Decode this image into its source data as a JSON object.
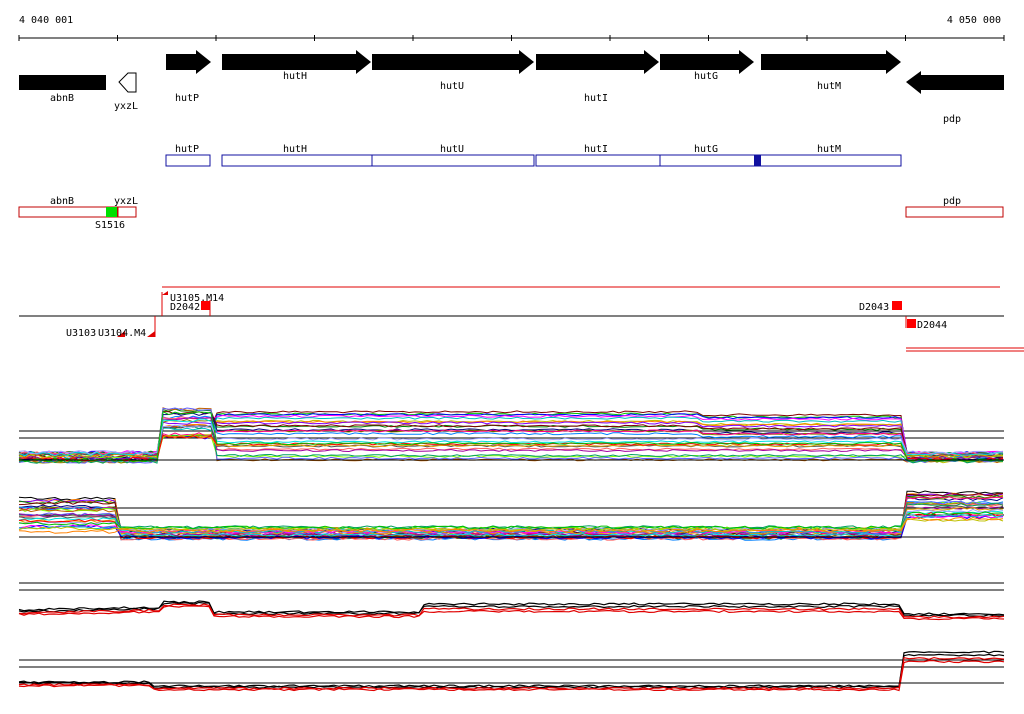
{
  "ruler": {
    "start_label": "4 040 001",
    "end_label": "4 050 000"
  },
  "genes": [
    {
      "name": "abnB",
      "strand": "-",
      "style": "solid"
    },
    {
      "name": "yxzL",
      "strand": "-",
      "style": "outline"
    },
    {
      "name": "hutP",
      "strand": "+",
      "style": "solid"
    },
    {
      "name": "hutH",
      "strand": "+",
      "style": "solid"
    },
    {
      "name": "hutU",
      "strand": "+",
      "style": "solid"
    },
    {
      "name": "hutI",
      "strand": "+",
      "style": "solid"
    },
    {
      "name": "hutG",
      "strand": "+",
      "style": "solid"
    },
    {
      "name": "hutM",
      "strand": "+",
      "style": "solid"
    },
    {
      "name": "pdp",
      "strand": "-",
      "style": "solid"
    }
  ],
  "forward_boxes": [
    "hutP",
    "hutH",
    "hutU",
    "hutI",
    "hutG",
    "hutM"
  ],
  "reverse_boxes": [
    "abnB",
    "yxzL",
    "pdp"
  ],
  "reverse_marker": "S1516",
  "feature_labels": {
    "u3105": "U3105.M14",
    "d2042": "D2042",
    "u3103": "U3103",
    "u3104": "U3104.M4",
    "d2043": "D2043",
    "d2044": "D2044"
  },
  "colors": {
    "forward_box": "#1010a0",
    "reverse_box": "#c00000",
    "green_marker": "#00e000",
    "feature_red": "#ff0000",
    "gene_fill": "#000000"
  }
}
